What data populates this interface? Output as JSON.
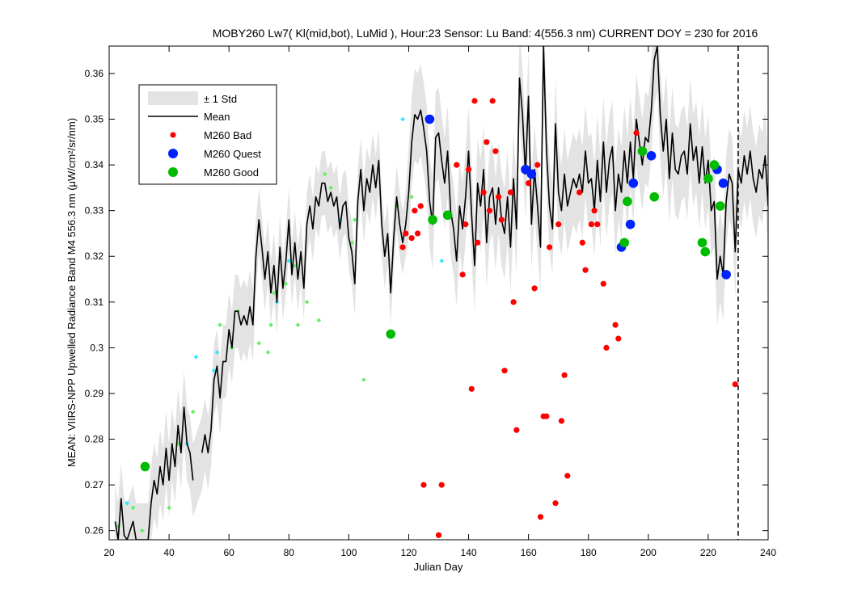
{
  "chart_data": {
    "type": "line",
    "title": "MOBY260   Lw7( Kl(mid,bot), LuMid ),   Hour:23 Sensor: Lu Band: 4(556.3 nm)   CURRENT DOY = 230 for 2016",
    "xlabel": "Julian Day",
    "ylabel": "MEAN: VIIRS-NPP Upwelled Radiance Band M4 556.3 nm (μW/cm²/sr/nm)",
    "xlim": [
      20,
      240
    ],
    "ylim": [
      0.258,
      0.366
    ],
    "xticks": [
      "20",
      "40",
      "60",
      "80",
      "100",
      "120",
      "140",
      "160",
      "180",
      "200",
      "220",
      "240"
    ],
    "yticks": [
      "0.26",
      "0.27",
      "0.28",
      "0.29",
      "0.3",
      "0.31",
      "0.32",
      "0.33",
      "0.34",
      "0.35",
      "0.36"
    ],
    "grid": false,
    "legend_placement": "top-left",
    "current_doy": 230,
    "legend": {
      "std": "± 1 Std",
      "mean": "Mean",
      "bad": "M260 Bad",
      "quest": "M260 Quest",
      "good": "M260 Good"
    },
    "colors": {
      "std_band": "#e3e3e3",
      "mean": "#000000",
      "bad": "#ff0000",
      "quest": "#0022ff",
      "good": "#00bb00",
      "aux_cyan": "#33e6ff",
      "aux_green": "#66ee66"
    },
    "mean_series": [
      [
        22,
        0.262
      ],
      [
        23,
        0.258
      ],
      [
        24,
        0.267
      ],
      [
        25,
        0.259
      ],
      [
        26,
        0.258
      ],
      [
        28,
        0.262
      ],
      [
        29,
        0.258
      ],
      [
        31,
        0.258
      ],
      [
        33,
        0.258
      ],
      [
        34,
        0.266
      ],
      [
        35,
        0.271
      ],
      [
        36,
        0.268
      ],
      [
        37,
        0.274
      ],
      [
        38,
        0.27
      ],
      [
        39,
        0.278
      ],
      [
        40,
        0.271
      ],
      [
        41,
        0.279
      ],
      [
        42,
        0.274
      ],
      [
        43,
        0.283
      ],
      [
        44,
        0.277
      ],
      [
        45,
        0.287
      ],
      [
        46,
        0.279
      ],
      [
        47,
        0.277
      ],
      [
        48,
        0.271
      ],
      [
        null,
        null
      ],
      [
        51,
        0.277
      ],
      [
        52,
        0.281
      ],
      [
        53,
        0.277
      ],
      [
        54,
        0.282
      ],
      [
        55,
        0.293
      ],
      [
        56,
        0.296
      ],
      [
        57,
        0.289
      ],
      [
        58,
        0.297
      ],
      [
        59,
        0.297
      ],
      [
        60,
        0.304
      ],
      [
        61,
        0.3
      ],
      [
        62,
        0.308
      ],
      [
        63,
        0.308
      ],
      [
        64,
        0.305
      ],
      [
        65,
        0.307
      ],
      [
        66,
        0.305
      ],
      [
        67,
        0.309
      ],
      [
        68,
        0.305
      ],
      [
        69,
        0.32
      ],
      [
        70,
        0.328
      ],
      [
        71,
        0.322
      ],
      [
        72,
        0.315
      ],
      [
        73,
        0.321
      ],
      [
        74,
        0.312
      ],
      [
        75,
        0.318
      ],
      [
        76,
        0.31
      ],
      [
        77,
        0.322
      ],
      [
        78,
        0.313
      ],
      [
        79,
        0.319
      ],
      [
        80,
        0.328
      ],
      [
        81,
        0.316
      ],
      [
        82,
        0.323
      ],
      [
        83,
        0.315
      ],
      [
        84,
        0.321
      ],
      [
        85,
        0.313
      ],
      [
        86,
        0.327
      ],
      [
        87,
        0.331
      ],
      [
        88,
        0.326
      ],
      [
        89,
        0.333
      ],
      [
        90,
        0.331
      ],
      [
        91,
        0.336
      ],
      [
        92,
        0.336
      ],
      [
        93,
        0.332
      ],
      [
        94,
        0.334
      ],
      [
        95,
        0.331
      ],
      [
        96,
        0.333
      ],
      [
        97,
        0.326
      ],
      [
        98,
        0.331
      ],
      [
        99,
        0.332
      ],
      [
        100,
        0.324
      ],
      [
        101,
        0.321
      ],
      [
        102,
        0.314
      ],
      [
        103,
        0.332
      ],
      [
        104,
        0.339
      ],
      [
        105,
        0.33
      ],
      [
        106,
        0.337
      ],
      [
        107,
        0.334
      ],
      [
        108,
        0.34
      ],
      [
        109,
        0.335
      ],
      [
        110,
        0.341
      ],
      [
        111,
        0.327
      ],
      [
        112,
        0.32
      ],
      [
        113,
        0.325
      ],
      [
        114,
        0.312
      ],
      [
        115,
        0.324
      ],
      [
        116,
        0.333
      ],
      [
        117,
        0.327
      ],
      [
        118,
        0.323
      ],
      [
        119,
        0.327
      ],
      [
        120,
        0.334
      ],
      [
        121,
        0.345
      ],
      [
        122,
        0.351
      ],
      [
        123,
        0.35
      ],
      [
        124,
        0.352
      ],
      [
        125,
        0.348
      ],
      [
        126,
        0.343
      ],
      [
        127,
        0.332
      ],
      [
        128,
        0.327
      ],
      [
        129,
        0.346
      ],
      [
        130,
        0.347
      ],
      [
        131,
        0.341
      ],
      [
        132,
        0.336
      ],
      [
        133,
        0.343
      ],
      [
        134,
        0.33
      ],
      [
        135,
        0.326
      ],
      [
        136,
        0.319
      ],
      [
        137,
        0.331
      ],
      [
        138,
        0.326
      ],
      [
        139,
        0.333
      ],
      [
        140,
        0.343
      ],
      [
        141,
        0.329
      ],
      [
        142,
        0.318
      ],
      [
        143,
        0.336
      ],
      [
        144,
        0.331
      ],
      [
        145,
        0.339
      ],
      [
        146,
        0.323
      ],
      [
        147,
        0.333
      ],
      [
        148,
        0.335
      ],
      [
        149,
        0.327
      ],
      [
        150,
        0.335
      ],
      [
        151,
        0.328
      ],
      [
        152,
        0.325
      ],
      [
        153,
        0.333
      ],
      [
        154,
        0.322
      ],
      [
        155,
        0.337
      ],
      [
        156,
        0.326
      ],
      [
        157,
        0.359
      ],
      [
        158,
        0.351
      ],
      [
        159,
        0.338
      ],
      [
        160,
        0.355
      ],
      [
        161,
        0.327
      ],
      [
        162,
        0.339
      ],
      [
        163,
        0.331
      ],
      [
        164,
        0.322
      ],
      [
        165,
        0.366
      ],
      [
        166,
        0.343
      ],
      [
        167,
        0.331
      ],
      [
        168,
        0.326
      ],
      [
        169,
        0.349
      ],
      [
        170,
        0.334
      ],
      [
        171,
        0.33
      ],
      [
        172,
        0.338
      ],
      [
        173,
        0.331
      ],
      [
        174,
        0.334
      ],
      [
        175,
        0.337
      ],
      [
        176,
        0.335
      ],
      [
        177,
        0.338
      ],
      [
        178,
        0.334
      ],
      [
        179,
        0.343
      ],
      [
        180,
        0.336
      ],
      [
        181,
        0.337
      ],
      [
        182,
        0.33
      ],
      [
        183,
        0.341
      ],
      [
        184,
        0.332
      ],
      [
        185,
        0.345
      ],
      [
        186,
        0.334
      ],
      [
        187,
        0.341
      ],
      [
        188,
        0.344
      ],
      [
        189,
        0.33
      ],
      [
        190,
        0.338
      ],
      [
        191,
        0.334
      ],
      [
        192,
        0.343
      ],
      [
        193,
        0.336
      ],
      [
        194,
        0.345
      ],
      [
        195,
        0.337
      ],
      [
        196,
        0.35
      ],
      [
        197,
        0.345
      ],
      [
        198,
        0.34
      ],
      [
        199,
        0.346
      ],
      [
        200,
        0.345
      ],
      [
        201,
        0.352
      ],
      [
        202,
        0.363
      ],
      [
        203,
        0.366
      ],
      [
        204,
        0.351
      ],
      [
        205,
        0.343
      ],
      [
        206,
        0.35
      ],
      [
        207,
        0.337
      ],
      [
        208,
        0.347
      ],
      [
        209,
        0.339
      ],
      [
        210,
        0.338
      ],
      [
        211,
        0.342
      ],
      [
        212,
        0.343
      ],
      [
        213,
        0.338
      ],
      [
        214,
        0.349
      ],
      [
        215,
        0.341
      ],
      [
        216,
        0.344
      ],
      [
        217,
        0.336
      ],
      [
        218,
        0.344
      ],
      [
        219,
        0.336
      ],
      [
        220,
        0.341
      ],
      [
        221,
        0.33
      ],
      [
        222,
        0.332
      ],
      [
        223,
        0.315
      ],
      [
        224,
        0.32
      ],
      [
        225,
        0.316
      ],
      [
        226,
        0.332
      ],
      [
        227,
        0.338
      ],
      [
        228,
        0.336
      ],
      [
        229,
        0.321
      ],
      [
        230,
        0.339
      ],
      [
        231,
        0.336
      ],
      [
        232,
        0.342
      ],
      [
        233,
        0.338
      ],
      [
        234,
        0.343
      ],
      [
        235,
        0.337
      ],
      [
        236,
        0.334
      ],
      [
        237,
        0.339
      ],
      [
        238,
        0.337
      ],
      [
        239,
        0.342
      ],
      [
        240,
        0.331
      ]
    ],
    "bad_points": [
      [
        118,
        0.322
      ],
      [
        119,
        0.325
      ],
      [
        121,
        0.324
      ],
      [
        122,
        0.33
      ],
      [
        123,
        0.325
      ],
      [
        124,
        0.331
      ],
      [
        125,
        0.27
      ],
      [
        130,
        0.259
      ],
      [
        131,
        0.27
      ],
      [
        136,
        0.34
      ],
      [
        138,
        0.316
      ],
      [
        139,
        0.327
      ],
      [
        140,
        0.339
      ],
      [
        141,
        0.291
      ],
      [
        142,
        0.354
      ],
      [
        143,
        0.323
      ],
      [
        145,
        0.334
      ],
      [
        146,
        0.345
      ],
      [
        147,
        0.33
      ],
      [
        148,
        0.354
      ],
      [
        149,
        0.343
      ],
      [
        150,
        0.333
      ],
      [
        151,
        0.328
      ],
      [
        152,
        0.295
      ],
      [
        154,
        0.334
      ],
      [
        155,
        0.31
      ],
      [
        156,
        0.282
      ],
      [
        160,
        0.336
      ],
      [
        162,
        0.313
      ],
      [
        163,
        0.34
      ],
      [
        164,
        0.263
      ],
      [
        165,
        0.285
      ],
      [
        166,
        0.285
      ],
      [
        167,
        0.322
      ],
      [
        169,
        0.266
      ],
      [
        170,
        0.327
      ],
      [
        171,
        0.284
      ],
      [
        172,
        0.294
      ],
      [
        173,
        0.272
      ],
      [
        177,
        0.334
      ],
      [
        178,
        0.323
      ],
      [
        179,
        0.317
      ],
      [
        181,
        0.327
      ],
      [
        182,
        0.33
      ],
      [
        183,
        0.327
      ],
      [
        185,
        0.314
      ],
      [
        186,
        0.3
      ],
      [
        189,
        0.305
      ],
      [
        190,
        0.302
      ],
      [
        196,
        0.347
      ],
      [
        229,
        0.292
      ]
    ],
    "quest_points": [
      [
        127,
        0.35
      ],
      [
        159,
        0.339
      ],
      [
        161,
        0.338
      ],
      [
        191,
        0.322
      ],
      [
        194,
        0.327
      ],
      [
        195,
        0.336
      ],
      [
        201,
        0.342
      ],
      [
        223,
        0.339
      ],
      [
        225,
        0.336
      ],
      [
        226,
        0.316
      ]
    ],
    "good_points": [
      [
        32,
        0.274
      ],
      [
        114,
        0.303
      ],
      [
        128,
        0.328
      ],
      [
        133,
        0.329
      ],
      [
        192,
        0.323
      ],
      [
        193,
        0.332
      ],
      [
        198,
        0.343
      ],
      [
        202,
        0.333
      ],
      [
        218,
        0.323
      ],
      [
        219,
        0.321
      ],
      [
        220,
        0.337
      ],
      [
        222,
        0.34
      ],
      [
        224,
        0.331
      ]
    ],
    "aux_cyan_points": [
      [
        26,
        0.266
      ],
      [
        49,
        0.298
      ],
      [
        46,
        0.279
      ],
      [
        55,
        0.295
      ],
      [
        56,
        0.299
      ],
      [
        76,
        0.31
      ],
      [
        80,
        0.319
      ],
      [
        97,
        0.328
      ],
      [
        118,
        0.35
      ],
      [
        131,
        0.319
      ]
    ],
    "aux_green_points": [
      [
        23,
        0.261
      ],
      [
        28,
        0.265
      ],
      [
        31,
        0.26
      ],
      [
        40,
        0.265
      ],
      [
        43,
        0.279
      ],
      [
        48,
        0.286
      ],
      [
        57,
        0.305
      ],
      [
        61,
        0.3
      ],
      [
        63,
        0.308
      ],
      [
        70,
        0.301
      ],
      [
        73,
        0.299
      ],
      [
        74,
        0.305
      ],
      [
        75,
        0.312
      ],
      [
        79,
        0.314
      ],
      [
        82,
        0.318
      ],
      [
        83,
        0.305
      ],
      [
        86,
        0.31
      ],
      [
        90,
        0.306
      ],
      [
        92,
        0.338
      ],
      [
        94,
        0.335
      ],
      [
        101,
        0.323
      ],
      [
        102,
        0.328
      ],
      [
        105,
        0.293
      ],
      [
        116,
        0.331
      ],
      [
        121,
        0.333
      ]
    ]
  }
}
